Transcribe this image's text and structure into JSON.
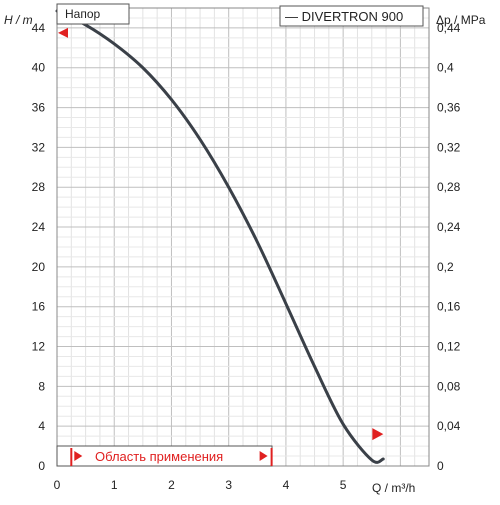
{
  "chart_data": {
    "type": "line",
    "title": "Напор",
    "legend": [
      "— DIVERTRON 900"
    ],
    "xlabel": "Q / m³/h",
    "ylabel_left": "H / m",
    "ylabel_right": "Δp / MPa",
    "xlim": [
      0,
      6.5
    ],
    "ylim": [
      0,
      46
    ],
    "x_ticks": [
      "0",
      "1",
      "2",
      "3",
      "4",
      "5"
    ],
    "x_tick_values": [
      0,
      1,
      2,
      3,
      4,
      5
    ],
    "y_ticks_left": [
      "0",
      "4",
      "8",
      "12",
      "16",
      "20",
      "24",
      "28",
      "32",
      "36",
      "40",
      "44"
    ],
    "y_tick_values_left": [
      0,
      4,
      8,
      12,
      16,
      20,
      24,
      28,
      32,
      36,
      40,
      44
    ],
    "y_ticks_right": [
      "0",
      "0,04",
      "0,08",
      "0,12",
      "0,16",
      "0,2",
      "0,24",
      "0,28",
      "0,32",
      "0,36",
      "0,4",
      "0,44"
    ],
    "y_tick_values_right": [
      0,
      0.04,
      0.08,
      0.12,
      0.16,
      0.2,
      0.24,
      0.28,
      0.32,
      0.36,
      0.4,
      0.44
    ],
    "grid": true,
    "series": [
      {
        "name": "DIVERTRON 900",
        "color": "#3a4048",
        "x": [
          0,
          0.5,
          1.0,
          1.5,
          2.0,
          2.5,
          3.0,
          3.5,
          4.0,
          4.5,
          5.0,
          5.5,
          5.7
        ],
        "y": [
          45.7,
          44.3,
          42.4,
          40.0,
          36.8,
          32.8,
          28.0,
          22.5,
          16.3,
          10.0,
          4.2,
          0.6,
          0.7
        ]
      }
    ],
    "operating_range": {
      "label": "Область применения",
      "x_start": 0.25,
      "x_end": 3.75,
      "color": "#e02020"
    },
    "markers": [
      {
        "x": 0,
        "y": 43.5
      },
      {
        "x": 5.65,
        "y": 3.2
      }
    ]
  }
}
